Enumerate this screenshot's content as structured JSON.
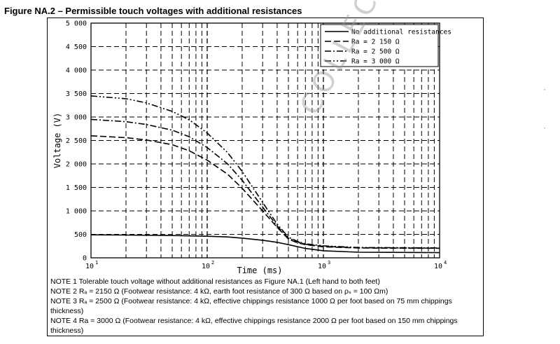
{
  "figure": {
    "title": "Figure NA.2  – Permissible touch voltages with additional resistances"
  },
  "chart_data": {
    "type": "line",
    "title": "",
    "xlabel": "Time (ms)",
    "ylabel": "Voltage (V)",
    "x_scale": "log",
    "xlim": [
      10,
      10000
    ],
    "ylim": [
      0,
      5000
    ],
    "x_ticks": [
      10,
      100,
      1000,
      10000
    ],
    "x_tick_labels": [
      [
        "10",
        "1"
      ],
      [
        "10",
        "2"
      ],
      [
        "10",
        "3"
      ],
      [
        "10",
        "4"
      ]
    ],
    "y_ticks": [
      0,
      500,
      1000,
      1500,
      2000,
      2500,
      3000,
      3500,
      4000,
      4500,
      5000
    ],
    "y_tick_labels": [
      "0",
      "500",
      "1 000",
      "1 500",
      "2 000",
      "2 500",
      "3 000",
      "3 500",
      "4 000",
      "4 500",
      "5 000"
    ],
    "grid": true,
    "legend_position": "top-right",
    "series": [
      {
        "name": "No additional resistances",
        "dash": "solid",
        "x": [
          10,
          20,
          50,
          100,
          150,
          200,
          300,
          400,
          500,
          700,
          1000,
          2000,
          5000,
          10000
        ],
        "y": [
          490,
          485,
          475,
          460,
          445,
          420,
          375,
          330,
          280,
          200,
          150,
          120,
          115,
          110
        ]
      },
      {
        "name": "Ra = 2 150 Ω",
        "dash": "dash",
        "x": [
          10,
          20,
          30,
          50,
          70,
          100,
          150,
          200,
          300,
          400,
          500,
          600,
          700,
          1000,
          2000,
          5000,
          10000
        ],
        "y": [
          2600,
          2560,
          2510,
          2410,
          2280,
          2080,
          1780,
          1480,
          1000,
          650,
          400,
          320,
          280,
          235,
          210,
          205,
          205
        ]
      },
      {
        "name": "Ra = 2 500 Ω",
        "dash": "dashdot",
        "x": [
          10,
          20,
          30,
          50,
          70,
          100,
          150,
          200,
          300,
          400,
          500,
          600,
          700,
          1000,
          2000,
          5000,
          10000
        ],
        "y": [
          2950,
          2900,
          2840,
          2720,
          2580,
          2350,
          2000,
          1650,
          1080,
          680,
          420,
          340,
          290,
          245,
          215,
          210,
          205
        ]
      },
      {
        "name": "Ra = 3 000 Ω",
        "dash": "dashdotdot",
        "x": [
          10,
          20,
          30,
          50,
          70,
          100,
          150,
          200,
          300,
          400,
          500,
          600,
          700,
          1000,
          2000,
          5000,
          10000
        ],
        "y": [
          3450,
          3390,
          3300,
          3120,
          2940,
          2660,
          2240,
          1840,
          1180,
          720,
          440,
          350,
          300,
          255,
          220,
          215,
          210
        ]
      }
    ]
  },
  "notes": [
    "NOTE 1 Tolerable touch voltage without additional resistances as Figure NA.1 (Left hand to both feet)",
    "NOTE 2 Rₐ = 2150 Ω (Footwear resistance: 4 kΩ, earth foot resistance of 300 Ω based on ρₛ = 100 Ωm)",
    "NOTE 3 Rₐ = 2500 Ω (Footwear resistance: 4 kΩ, effective chippings resistance 1000 Ω per foot based on 75 mm chippings thickness)",
    "NOTE 4 Ra = 3000 Ω (Footwear resistance: 4 kΩ, effective chippings resistance 2000 Ω per foot based on 150 mm chippings thickness)"
  ],
  "watermark": "COLLECTION",
  "margin_marks": [
    "·",
    "·"
  ]
}
